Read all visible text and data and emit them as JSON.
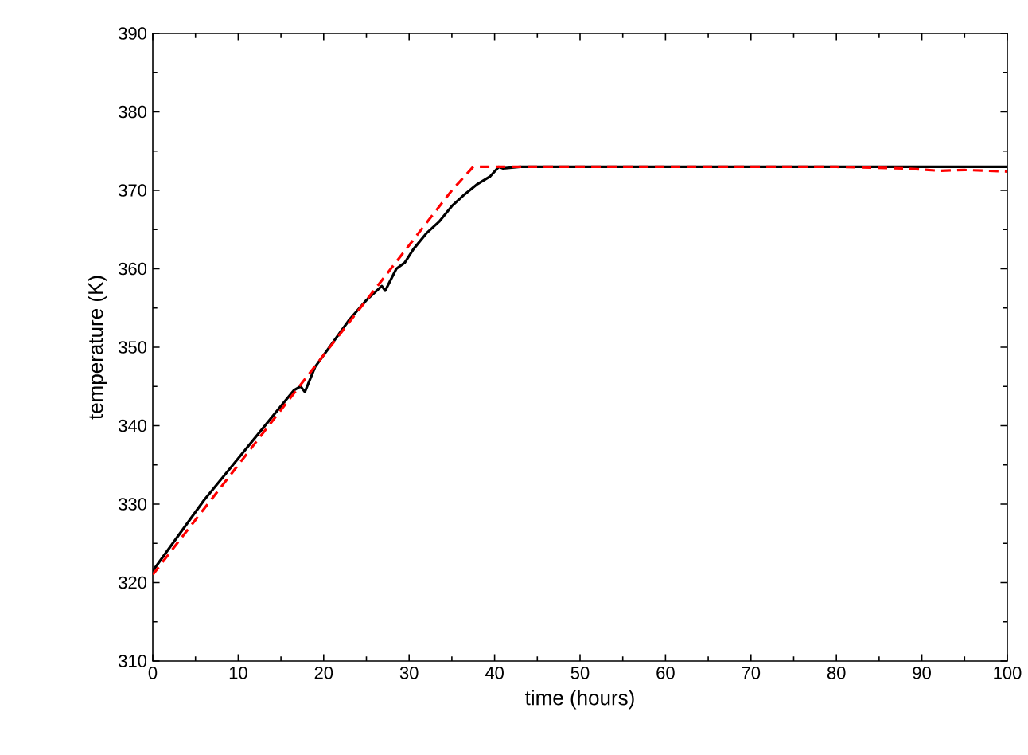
{
  "chart_data": {
    "type": "line",
    "xlabel": "time (hours)",
    "ylabel": "temperature (K)",
    "xlim": [
      0,
      100
    ],
    "ylim": [
      310,
      390
    ],
    "xticks": [
      0,
      10,
      20,
      30,
      40,
      50,
      60,
      70,
      80,
      90,
      100
    ],
    "yticks": [
      310,
      320,
      330,
      340,
      350,
      360,
      370,
      380,
      390
    ],
    "grid": false,
    "marker": "none",
    "series": [
      {
        "color": "#000000",
        "line_style": "solid",
        "x": [
          0,
          3,
          6,
          9,
          12,
          15,
          16.5,
          17.3,
          17.8,
          19,
          21,
          23,
          25,
          26.8,
          27.2,
          28.5,
          29.5,
          30.5,
          32,
          33.5,
          35,
          36.5,
          38,
          39.5,
          40.5,
          41,
          43,
          50,
          60,
          70,
          80,
          90,
          100
        ],
        "values": [
          321.5,
          326,
          330.5,
          334.5,
          338.5,
          342.5,
          344.5,
          345,
          344.3,
          347.5,
          350.5,
          353.5,
          356,
          357.8,
          357.2,
          360,
          360.8,
          362.5,
          364.5,
          366,
          368,
          369.5,
          370.8,
          371.8,
          373,
          372.8,
          373,
          373,
          373,
          373,
          373,
          373,
          373
        ]
      },
      {
        "color": "#ff0000",
        "line_style": "dashed",
        "x": [
          0,
          5,
          10,
          15,
          20,
          25,
          30,
          35,
          37.5,
          40,
          50,
          60,
          70,
          80,
          88,
          92,
          95,
          100
        ],
        "values": [
          321,
          328,
          335,
          342,
          349,
          356,
          363,
          370,
          373,
          373,
          373,
          373,
          373,
          373,
          372.8,
          372.5,
          372.6,
          372.4
        ]
      }
    ]
  }
}
